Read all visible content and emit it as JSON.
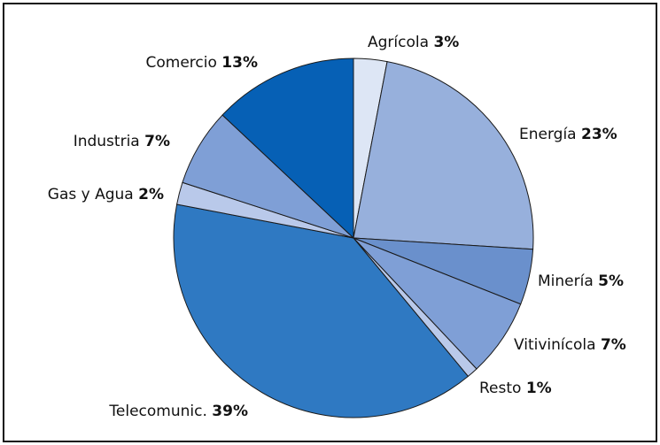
{
  "chart_data": {
    "type": "pie",
    "categories": [
      "Agrícola",
      "Energía",
      "Minería",
      "Vitivinícola",
      "Resto",
      "Telecomunic.",
      "Gas y Agua",
      "Industria",
      "Comercio"
    ],
    "values": [
      3,
      23,
      5,
      7,
      1,
      39,
      2,
      7,
      13
    ],
    "value_labels": [
      "3%",
      "23%",
      "5%",
      "7%",
      "1%",
      "39%",
      "2%",
      "7%",
      "13%"
    ],
    "colors": [
      "#dde6f5",
      "#97b0dc",
      "#6a90cc",
      "#7f9fd6",
      "#b9c9ea",
      "#2f79c2",
      "#b9c9ea",
      "#7f9fd6",
      "#0660b5"
    ]
  }
}
